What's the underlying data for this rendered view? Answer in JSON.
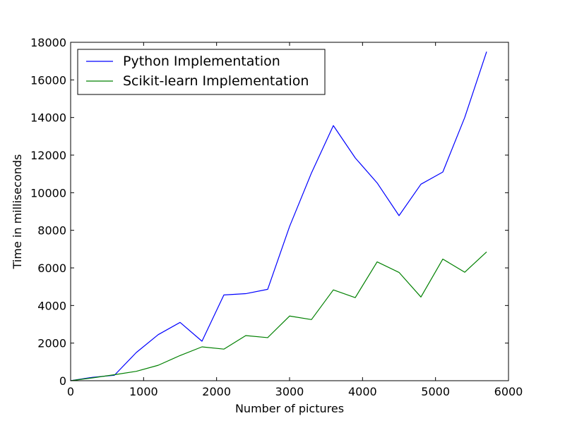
{
  "chart_data": {
    "type": "line",
    "xlabel": "Number of pictures",
    "ylabel": "Time in milliseconds",
    "xlim": [
      0,
      6000
    ],
    "ylim": [
      0,
      18000
    ],
    "xticks": [
      "0",
      "1000",
      "2000",
      "3000",
      "4000",
      "5000",
      "6000"
    ],
    "yticks": [
      "0",
      "2000",
      "4000",
      "6000",
      "8000",
      "10000",
      "12000",
      "14000",
      "16000",
      "18000"
    ],
    "grid": false,
    "legend_position": "top-left",
    "x": [
      0,
      300,
      600,
      900,
      1200,
      1500,
      1800,
      2100,
      2400,
      2700,
      3000,
      3300,
      3600,
      3900,
      4200,
      4500,
      4800,
      5100,
      5400,
      5700
    ],
    "series": [
      {
        "name": "Python Implementation",
        "color": "#0000ff",
        "values": [
          0,
          180,
          290,
          1500,
          2450,
          3100,
          2100,
          4560,
          4630,
          4860,
          8200,
          11050,
          13570,
          11850,
          10520,
          8780,
          10450,
          11100,
          14000,
          17500
        ]
      },
      {
        "name": "Scikit-learn Implementation",
        "color": "#008000",
        "values": [
          0,
          150,
          320,
          500,
          820,
          1340,
          1800,
          1680,
          2400,
          2290,
          3440,
          3250,
          4830,
          4420,
          6320,
          5760,
          4450,
          6470,
          5770,
          6850
        ]
      }
    ]
  }
}
